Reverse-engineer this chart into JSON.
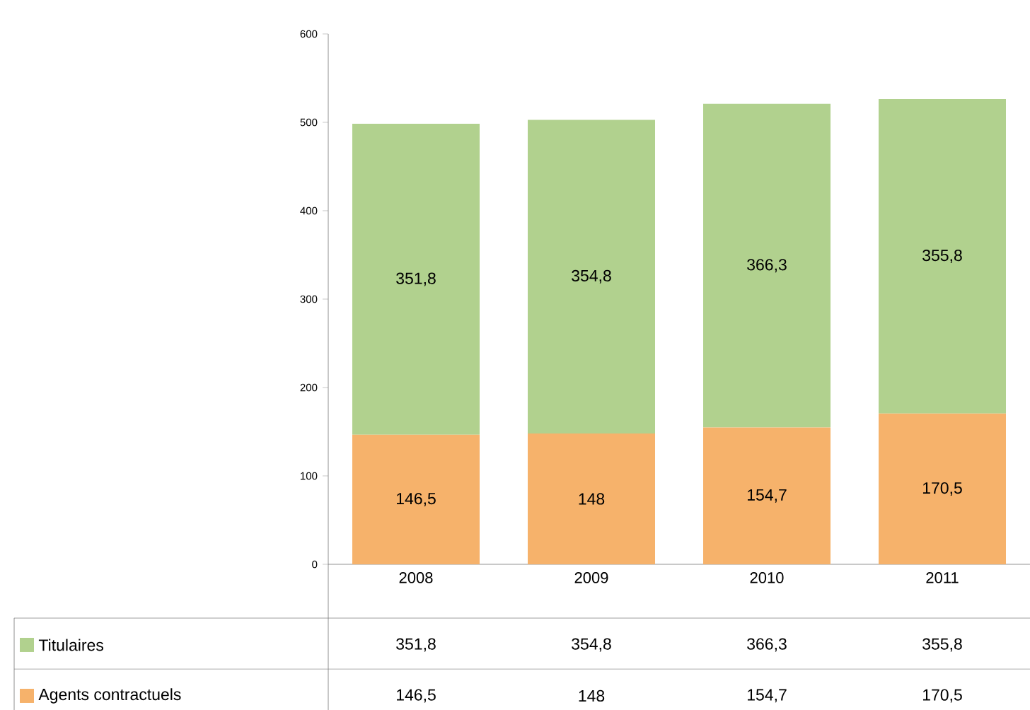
{
  "chart_data": {
    "type": "bar",
    "stacked": true,
    "categories": [
      "2008",
      "2009",
      "2010",
      "2011"
    ],
    "ylim": [
      0,
      600
    ],
    "yticks": [
      0,
      100,
      200,
      300,
      400,
      500,
      600
    ],
    "legend": "bottom left",
    "series": [
      {
        "name": "Agents contractuels",
        "color": "#f6b26b",
        "values": [
          146.5,
          148,
          154.7,
          170.5
        ],
        "value_labels": [
          "146,5",
          "148",
          "154,7",
          "170,5"
        ]
      },
      {
        "name": "Titulaires",
        "color": "#b1d18e",
        "values": [
          351.8,
          354.8,
          366.3,
          355.8
        ],
        "value_labels": [
          "351,8",
          "354,8",
          "366,3",
          "355,8"
        ]
      }
    ]
  }
}
